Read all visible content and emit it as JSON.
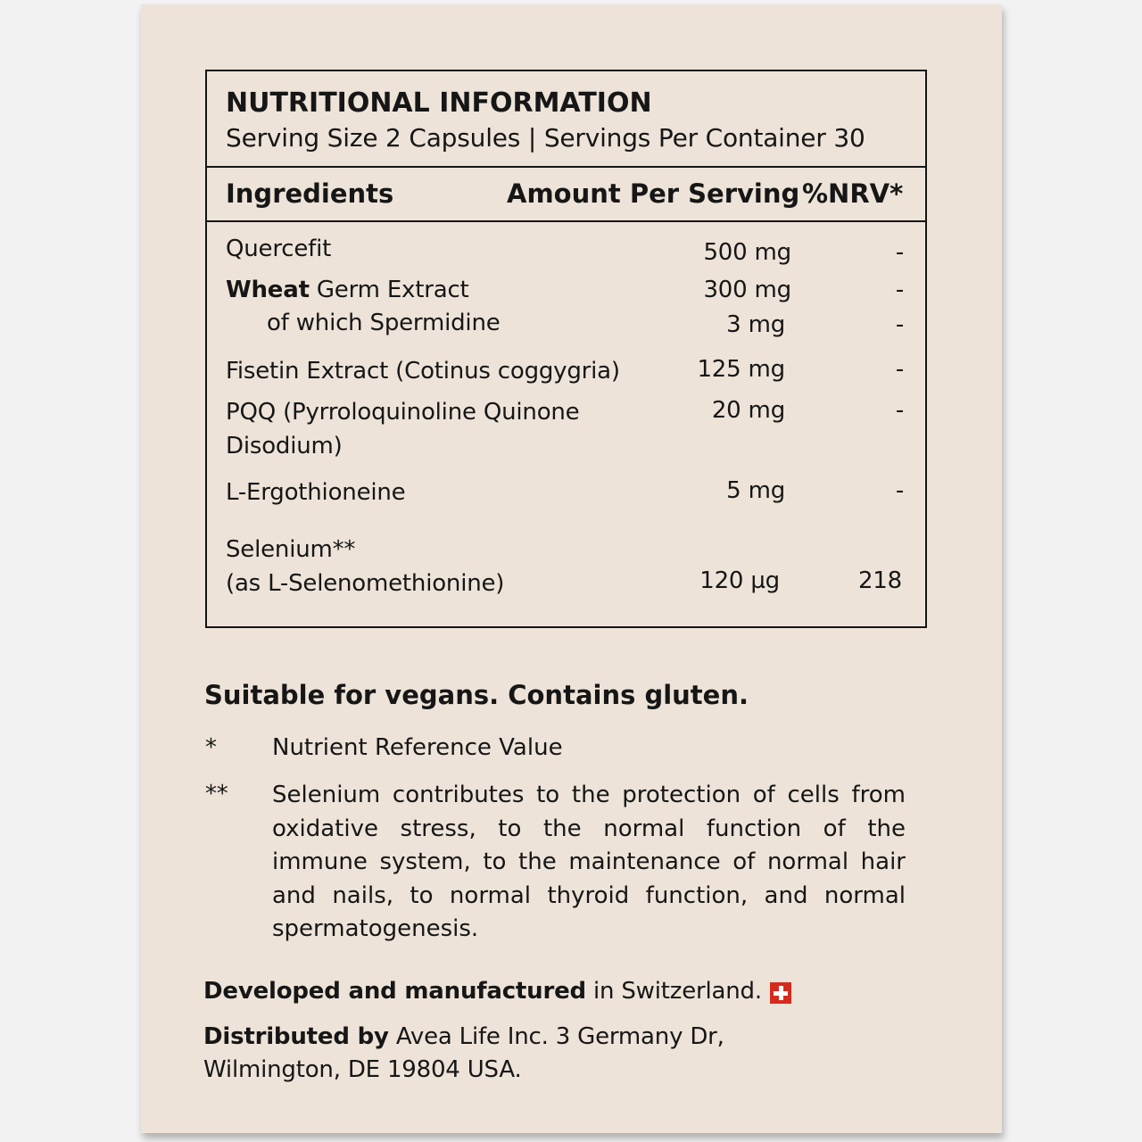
{
  "table": {
    "title": "NUTRITIONAL INFORMATION",
    "serving": "Serving Size 2 Capsules | Servings Per Container 30",
    "headers": {
      "ingredients": "Ingredients",
      "amount": "Amount Per Serving",
      "nrv": "%NRV*"
    },
    "rows": [
      {
        "name": "Quercefit",
        "amount": "500 mg",
        "nrv": "-"
      },
      {
        "name_bold": "Wheat",
        "name": " Germ Extract",
        "amount": "300 mg",
        "nrv": "-"
      },
      {
        "name": "of which Spermidine",
        "amount": "3 mg",
        "nrv": "-"
      },
      {
        "name": "Fisetin Extract (Cotinus coggygria)",
        "amount": "125 mg",
        "nrv": "-"
      },
      {
        "name": "PQQ (Pyrroloquinoline Quinone",
        "name2": "Disodium)",
        "amount": "20 mg",
        "nrv": "-"
      },
      {
        "name": "L-Ergothioneine",
        "amount": "5 mg",
        "nrv": "-"
      },
      {
        "name": "Selenium**",
        "name2": "(as L-Selenomethionine)",
        "amount": "120 µg",
        "nrv": "218"
      }
    ]
  },
  "vegan_note": "Suitable for vegans. Contains gluten.",
  "footnotes": [
    {
      "mark": "*",
      "text": "Nutrient Reference Value"
    },
    {
      "mark": "**",
      "text": "Selenium contributes to the protection of cells from oxidative stress, to the normal function of the immune system, to the maintenance of normal hair and nails, to normal thyroid function, and normal spermatogenesis."
    }
  ],
  "origin": {
    "bold": "Developed and manufactured",
    "text": " in Switzerland.",
    "flag_icon": "swiss-flag-icon",
    "flag_color": "#d52b1e"
  },
  "distributor": {
    "bold": "Distributed by",
    "line1": " Avea Life Inc. 3 Germany Dr,",
    "line2": "Wilmington, DE 19804 USA."
  }
}
